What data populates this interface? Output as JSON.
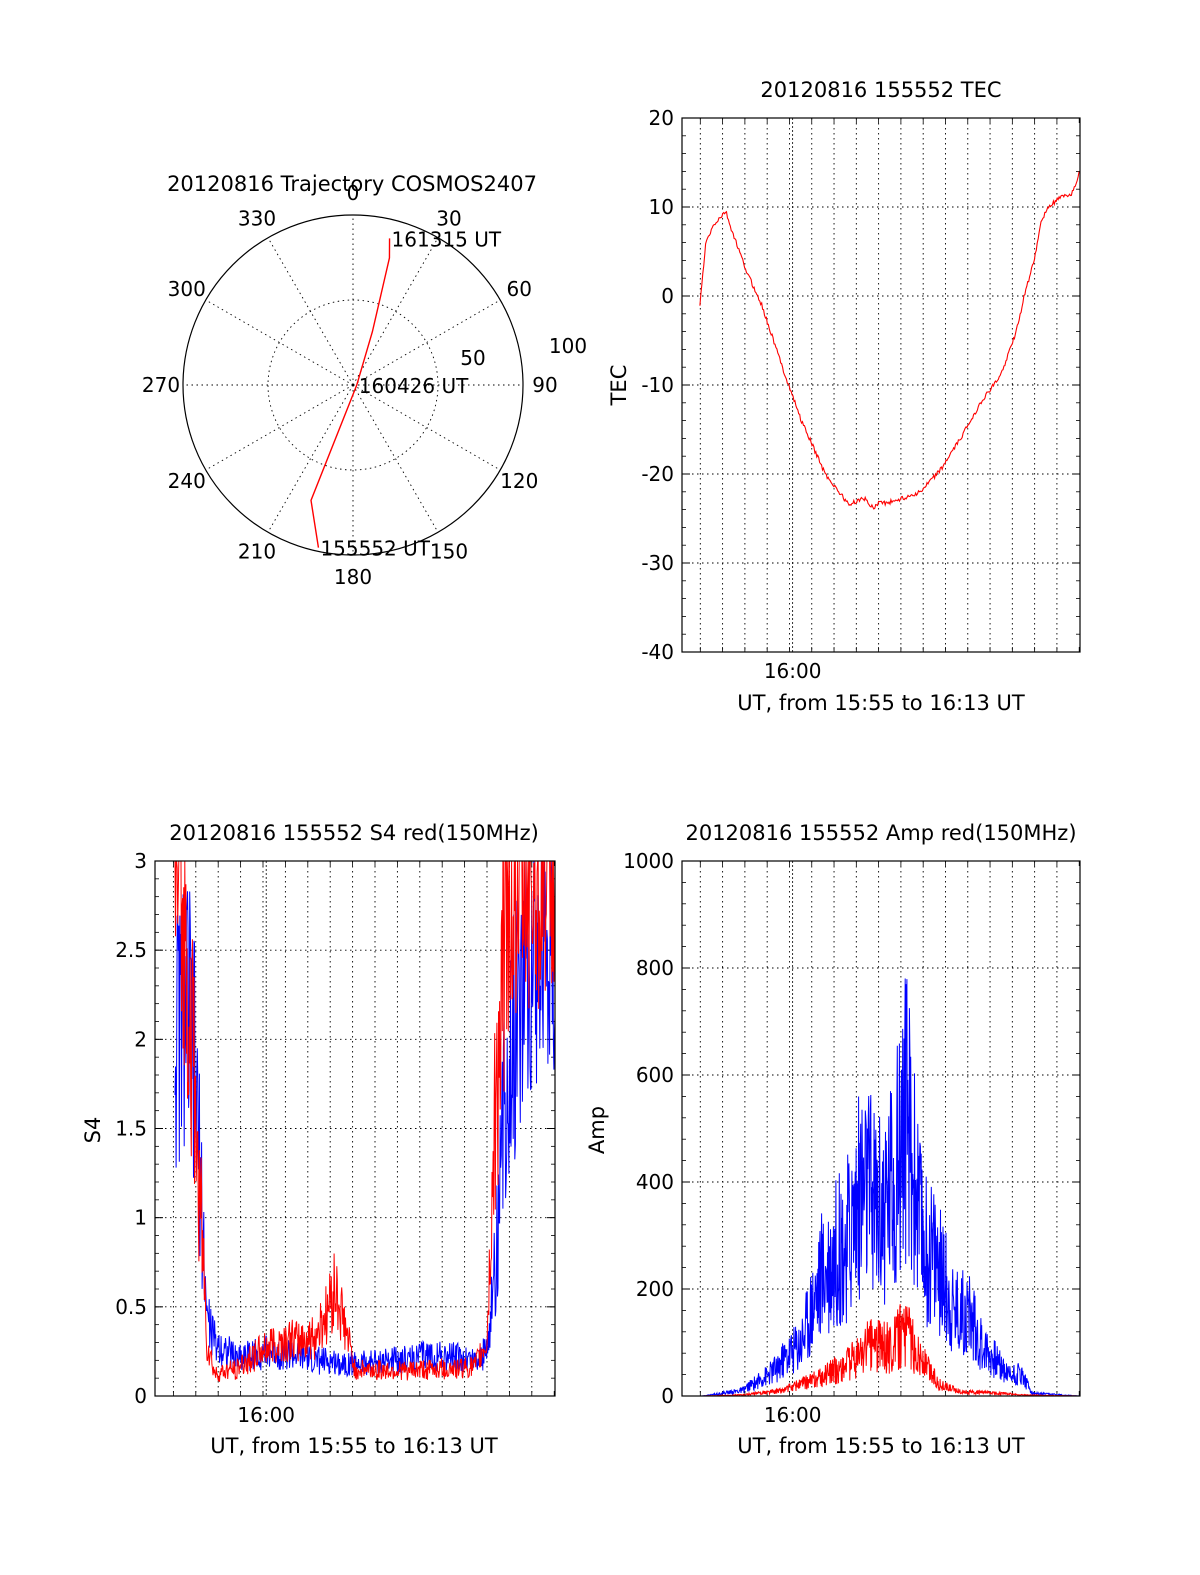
{
  "chart_data": [
    {
      "type": "polar",
      "title": "20120816 Trajectory COSMOS2407",
      "angle_labels": [
        "0",
        "30",
        "60",
        "90",
        "120",
        "150",
        "180",
        "210",
        "240",
        "270",
        "300",
        "330"
      ],
      "radius_labels": [
        "50",
        "100"
      ],
      "series": [
        {
          "color": "#ff0000",
          "points": [
            {
              "azimuth": 192,
              "elevation": 2,
              "label": "155552 UT"
            },
            {
              "azimuth": 200,
              "elevation": 25
            },
            {
              "azimuth": 90,
              "elevation": 88,
              "label": "160426 UT"
            },
            {
              "azimuth": 20,
              "elevation": 60
            },
            {
              "azimuth": 16,
              "elevation": 20
            },
            {
              "azimuth": 14,
              "elevation": 10,
              "label": "161315 UT"
            }
          ]
        }
      ]
    },
    {
      "type": "line",
      "title": "20120816 155552 TEC",
      "xlabel": "UT, from 15:55 to 16:13 UT",
      "ylabel": "TEC",
      "x_tick_label": "16:00",
      "xlim": [
        15.5,
        16.3
      ],
      "ylim": [
        -40,
        20
      ],
      "y_ticks": [
        "20",
        "10",
        "0",
        "-10",
        "-20",
        "-30",
        "-40"
      ],
      "grid": true,
      "series": [
        {
          "color": "#ff0000",
          "x": [
            0.045,
            0.06,
            0.08,
            0.11,
            0.12,
            0.16,
            0.2,
            0.26,
            0.3,
            0.36,
            0.42,
            0.44,
            0.46,
            0.48,
            0.5,
            0.51,
            0.55,
            0.6,
            0.65,
            0.7,
            0.75,
            0.8,
            0.84,
            0.86,
            0.89,
            0.9,
            0.92,
            0.95,
            0.98,
            1.0
          ],
          "y": [
            -1,
            6,
            8,
            9.5,
            8,
            3,
            -1,
            -9,
            -14,
            -20,
            -23.5,
            -23,
            -22.8,
            -23.8,
            -23,
            -23.3,
            -22.8,
            -22,
            -19.5,
            -16,
            -12,
            -9,
            -4,
            0,
            5,
            8,
            10,
            11,
            11.5,
            14
          ]
        }
      ]
    },
    {
      "type": "line",
      "title": "20120816 155552 S4 red(150MHz)",
      "xlabel": "UT, from 15:55 to 16:13 UT",
      "ylabel": "S4",
      "x_tick_label": "16:00",
      "ylim": [
        0,
        3
      ],
      "y_ticks": [
        "3",
        "2.5",
        "2",
        "1.5",
        "1",
        "0.5",
        "0"
      ],
      "grid": true,
      "series": [
        {
          "color": "#0000ff",
          "x": [
            0.05,
            0.08,
            0.1,
            0.12,
            0.13,
            0.15,
            0.2,
            0.3,
            0.4,
            0.5,
            0.6,
            0.7,
            0.8,
            0.83,
            0.85,
            0.88,
            0.92,
            1.0
          ],
          "y": [
            2.0,
            2.2,
            1.8,
            0.9,
            0.45,
            0.3,
            0.22,
            0.25,
            0.2,
            0.18,
            0.2,
            0.23,
            0.2,
            0.25,
            0.7,
            1.8,
            2.4,
            2.6
          ]
        },
        {
          "color": "#ff0000",
          "x": [
            0.05,
            0.08,
            0.1,
            0.12,
            0.13,
            0.15,
            0.2,
            0.3,
            0.4,
            0.45,
            0.5,
            0.6,
            0.7,
            0.8,
            0.83,
            0.85,
            0.88,
            1.0
          ],
          "y": [
            3.0,
            2.5,
            1.6,
            0.8,
            0.3,
            0.12,
            0.15,
            0.3,
            0.32,
            0.6,
            0.15,
            0.14,
            0.15,
            0.16,
            0.3,
            1.5,
            2.8,
            3.0
          ]
        }
      ]
    },
    {
      "type": "line",
      "title": "20120816 155552 Amp red(150MHz)",
      "xlabel": "UT, from 15:55 to 16:13 UT",
      "ylabel": "Amp",
      "x_tick_label": "16:00",
      "ylim": [
        0,
        1000
      ],
      "y_ticks": [
        "1000",
        "800",
        "600",
        "400",
        "200",
        "0"
      ],
      "grid": true,
      "series": [
        {
          "color": "#0000ff",
          "x": [
            0.05,
            0.15,
            0.22,
            0.3,
            0.35,
            0.42,
            0.45,
            0.5,
            0.54,
            0.56,
            0.6,
            0.64,
            0.68,
            0.72,
            0.76,
            0.82,
            0.85,
            0.88,
            1.0
          ],
          "y": [
            0,
            10,
            40,
            100,
            220,
            300,
            380,
            350,
            420,
            540,
            300,
            250,
            160,
            150,
            90,
            40,
            45,
            5,
            0
          ]
        },
        {
          "color": "#ff0000",
          "x": [
            0.05,
            0.15,
            0.25,
            0.35,
            0.42,
            0.48,
            0.52,
            0.56,
            0.6,
            0.65,
            0.7,
            0.8,
            0.85,
            1.0
          ],
          "y": [
            0,
            2,
            10,
            35,
            60,
            100,
            90,
            120,
            70,
            20,
            8,
            5,
            2,
            0
          ]
        }
      ]
    }
  ]
}
